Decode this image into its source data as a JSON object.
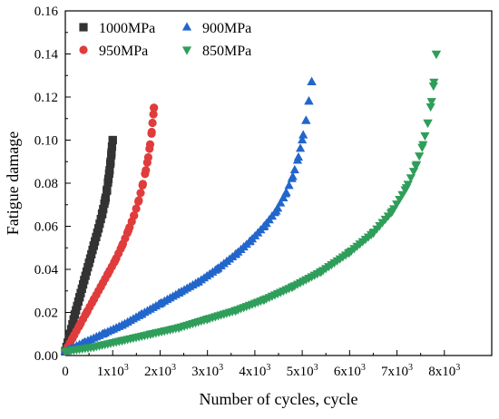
{
  "chart_data": {
    "type": "scatter",
    "xlabel": "Number of cycles, cycle",
    "ylabel": "Fatigue damage",
    "xlim": [
      0,
      9000
    ],
    "ylim": [
      0,
      0.16
    ],
    "x_ticks": [
      0,
      1000,
      2000,
      3000,
      4000,
      5000,
      6000,
      7000,
      8000
    ],
    "x_tick_labels": [
      {
        "base": "0",
        "exp": ""
      },
      {
        "base": "1x10",
        "exp": "3"
      },
      {
        "base": "2x10",
        "exp": "3"
      },
      {
        "base": "3x10",
        "exp": "3"
      },
      {
        "base": "4x10",
        "exp": "3"
      },
      {
        "base": "5x10",
        "exp": "3"
      },
      {
        "base": "6x10",
        "exp": "3"
      },
      {
        "base": "7x10",
        "exp": "3"
      },
      {
        "base": "8x10",
        "exp": "3"
      }
    ],
    "y_ticks": [
      0,
      0.02,
      0.04,
      0.06,
      0.08,
      0.1,
      0.12,
      0.14,
      0.16
    ],
    "y_tick_labels": [
      "0.00",
      "0.02",
      "0.04",
      "0.06",
      "0.08",
      "0.10",
      "0.12",
      "0.14",
      "0.16"
    ],
    "legend_position": "top-left",
    "series": [
      {
        "name": "1000MPa",
        "color": "#333333",
        "marker": "square",
        "x": [
          0,
          100,
          200,
          300,
          400,
          500,
          600,
          700,
          780,
          840,
          880,
          910,
          935,
          955,
          970,
          985,
          1000
        ],
        "y": [
          0.002,
          0.01,
          0.019,
          0.027,
          0.035,
          0.043,
          0.051,
          0.059,
          0.066,
          0.072,
          0.077,
          0.082,
          0.086,
          0.09,
          0.093,
          0.097,
          0.1
        ]
      },
      {
        "name": "950MPa",
        "color": "#e03c3c",
        "marker": "circle",
        "x": [
          0,
          150,
          300,
          450,
          600,
          750,
          900,
          1050,
          1200,
          1330,
          1450,
          1550,
          1630,
          1700,
          1750,
          1790,
          1820,
          1840,
          1860,
          1870
        ],
        "y": [
          0.002,
          0.008,
          0.014,
          0.02,
          0.026,
          0.032,
          0.038,
          0.044,
          0.051,
          0.058,
          0.065,
          0.072,
          0.079,
          0.086,
          0.092,
          0.098,
          0.103,
          0.108,
          0.112,
          0.115
        ]
      },
      {
        "name": "900MPa",
        "color": "#2266cc",
        "marker": "triangle-up",
        "x": [
          0,
          400,
          800,
          1200,
          1600,
          2000,
          2400,
          2800,
          3200,
          3600,
          3900,
          4200,
          4450,
          4650,
          4800,
          4920,
          5000,
          5080,
          5140,
          5200
        ],
        "y": [
          0.002,
          0.006,
          0.01,
          0.014,
          0.019,
          0.024,
          0.029,
          0.034,
          0.04,
          0.047,
          0.053,
          0.06,
          0.067,
          0.075,
          0.083,
          0.092,
          0.1,
          0.109,
          0.118,
          0.127
        ]
      },
      {
        "name": "850MPa",
        "color": "#2e9e5a",
        "marker": "triangle-down",
        "x": [
          0,
          600,
          1200,
          1800,
          2400,
          3000,
          3600,
          4200,
          4800,
          5400,
          6000,
          6500,
          6900,
          7200,
          7400,
          7550,
          7650,
          7730,
          7780,
          7830
        ],
        "y": [
          0.002,
          0.004,
          0.007,
          0.01,
          0.013,
          0.017,
          0.021,
          0.026,
          0.032,
          0.039,
          0.048,
          0.057,
          0.067,
          0.078,
          0.088,
          0.098,
          0.108,
          0.118,
          0.127,
          0.14
        ]
      }
    ]
  }
}
